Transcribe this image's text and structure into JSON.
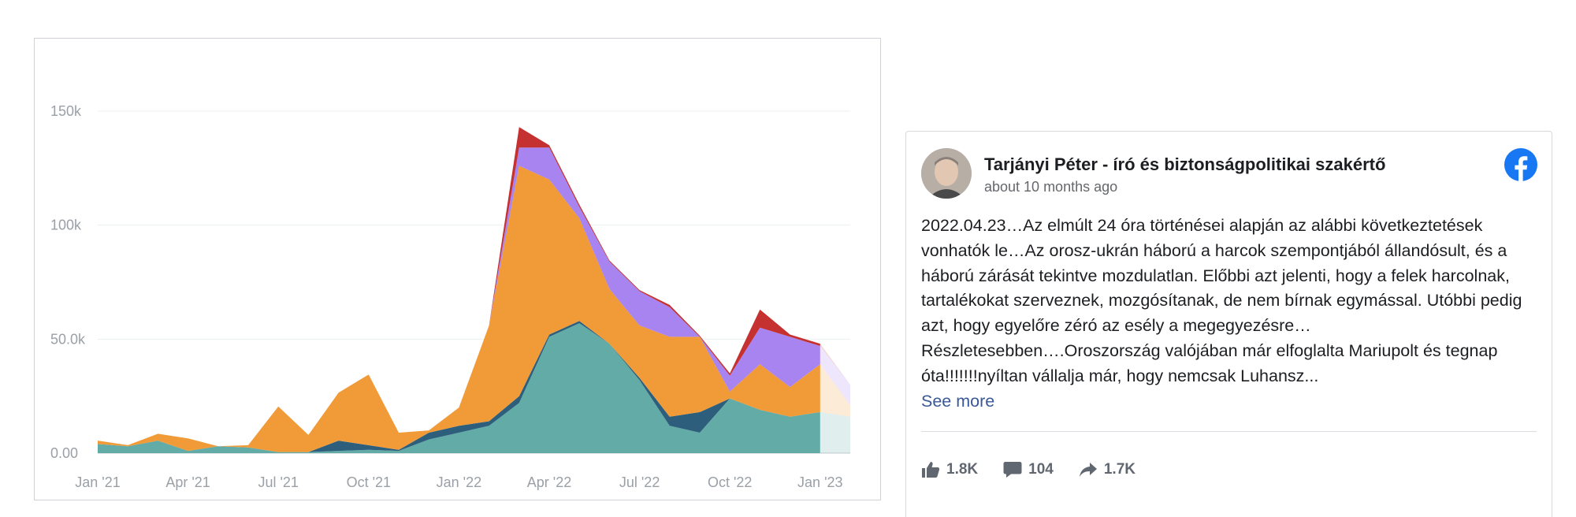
{
  "chart_data": {
    "type": "area",
    "stacked": true,
    "title": "",
    "xlabel": "",
    "ylabel": "",
    "ylim": [
      0,
      160000
    ],
    "y_ticks": [
      {
        "value": 0,
        "label": "0.00"
      },
      {
        "value": 50000,
        "label": "50.0k"
      },
      {
        "value": 100000,
        "label": "100k"
      },
      {
        "value": 150000,
        "label": "150k"
      }
    ],
    "x_ticks": [
      {
        "index": 0,
        "label": "Jan '21"
      },
      {
        "index": 3,
        "label": "Apr '21"
      },
      {
        "index": 6,
        "label": "Jul '21"
      },
      {
        "index": 9,
        "label": "Oct '21"
      },
      {
        "index": 12,
        "label": "Jan '22"
      },
      {
        "index": 15,
        "label": "Apr '22"
      },
      {
        "index": 18,
        "label": "Jul '22"
      },
      {
        "index": 21,
        "label": "Oct '22"
      },
      {
        "index": 24,
        "label": "Jan '23"
      }
    ],
    "x": [
      "2021-01",
      "2021-02",
      "2021-03",
      "2021-04",
      "2021-05",
      "2021-06",
      "2021-07",
      "2021-08",
      "2021-09",
      "2021-10",
      "2021-11",
      "2021-12",
      "2022-01",
      "2022-02",
      "2022-03",
      "2022-04",
      "2022-05",
      "2022-06",
      "2022-07",
      "2022-08",
      "2022-09",
      "2022-10",
      "2022-11",
      "2022-12",
      "2023-01",
      "2023-02"
    ],
    "partial_from_index": 24,
    "grid": true,
    "legend": "none",
    "series": [
      {
        "color": "#62aba7",
        "values": [
          4000,
          3000,
          5500,
          1000,
          3000,
          2500,
          500,
          500,
          1000,
          1500,
          1000,
          6000,
          9000,
          12000,
          22000,
          51000,
          57000,
          48000,
          32000,
          12000,
          9000,
          24000,
          19000,
          16000,
          18000,
          16000
        ]
      },
      {
        "color": "#2d5f7c",
        "values": [
          0,
          0,
          0,
          0,
          0,
          0,
          0,
          0,
          4500,
          2000,
          500,
          3000,
          3000,
          2000,
          3000,
          1000,
          1000,
          0,
          1000,
          4000,
          9000,
          0,
          0,
          0,
          0,
          0
        ]
      },
      {
        "color": "#f19a38",
        "values": [
          1500,
          500,
          3000,
          5500,
          0,
          1000,
          20000,
          7500,
          21000,
          31000,
          7500,
          1000,
          8000,
          42000,
          101000,
          68000,
          45000,
          24000,
          23000,
          35000,
          33000,
          3000,
          20000,
          13000,
          21000,
          5000
        ]
      },
      {
        "color": "#a884f0",
        "values": [
          0,
          0,
          0,
          0,
          0,
          0,
          0,
          0,
          0,
          0,
          0,
          0,
          0,
          0,
          8000,
          14000,
          5000,
          12000,
          15000,
          13000,
          0,
          7000,
          16000,
          22000,
          8000,
          9000
        ]
      },
      {
        "color": "#c53030",
        "values": [
          0,
          0,
          0,
          0,
          0,
          0,
          0,
          0,
          0,
          0,
          0,
          0,
          0,
          0,
          9000,
          1000,
          1000,
          500,
          500,
          1000,
          500,
          1000,
          8000,
          1000,
          1000,
          0
        ]
      }
    ]
  },
  "post": {
    "author": "Tarjányi Péter - író és biztonságpolitikai szakértő",
    "timestamp": "about 10 months ago",
    "text": "2022.04.23…Az elmúlt 24 óra történései alapján az alábbi következtetések vonhatók le…Az orosz-ukrán háború a harcok szempontjából állandósult, és a háború zárását tekintve mozdulatlan. Előbbi azt jelenti, hogy a felek harcolnak, tartalékokat szerveznek, mozgósítanak, de nem bírnak egymással. Utóbbi pedig azt, hogy egyelőre zéró az esély a megegyezésre… Részletesebben….Oroszország valójában már elfoglalta Mariupolt és tegnap óta!!!!!!!nyíltan vállalja már, hogy nemcsak Luhansz...",
    "see_more": "See more",
    "likes": "1.8K",
    "comments": "104",
    "shares": "1.7K",
    "platform_icon": "facebook-icon",
    "brand_color": "#1877f2"
  }
}
